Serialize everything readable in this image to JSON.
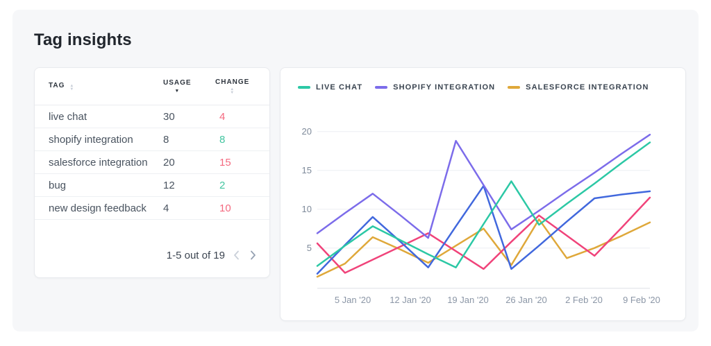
{
  "page": {
    "title": "Tag insights"
  },
  "table": {
    "columns": [
      {
        "label": "TAG",
        "sort": "sortable"
      },
      {
        "label": "USAGE",
        "sort": "desc"
      },
      {
        "label": "CHANGE",
        "sort": "sortable"
      }
    ],
    "rows": [
      {
        "tag": "live chat",
        "usage": "30",
        "change": "4",
        "direction": "down"
      },
      {
        "tag": "shopify integration",
        "usage": "8",
        "change": "8",
        "direction": "up"
      },
      {
        "tag": "salesforce integration",
        "usage": "20",
        "change": "15",
        "direction": "down"
      },
      {
        "tag": "bug",
        "usage": "12",
        "change": "2",
        "direction": "up"
      },
      {
        "tag": "new design feedback",
        "usage": "4",
        "change": "10",
        "direction": "down"
      }
    ],
    "pagination": {
      "label": "1-5 out of 19"
    }
  },
  "chart_data": {
    "type": "line",
    "x_labels": [
      "5 Jan '20",
      "12 Jan '20",
      "19 Jan '20",
      "26 Jan '20",
      "2 Feb '20",
      "9 Feb '20"
    ],
    "y_ticks": [
      5,
      10,
      15,
      20
    ],
    "ylim": [
      0,
      21
    ],
    "grid": true,
    "legend_position": "top-left",
    "legend": [
      {
        "label": "LIVE CHAT",
        "color": "#2cc8a5"
      },
      {
        "label": "SHOPIFY INTEGRATION",
        "color": "#7c6cea"
      },
      {
        "label": "SALESFORCE INTEGRATION",
        "color": "#dfa83a"
      }
    ],
    "series": [
      {
        "name": "salesforce integration",
        "color": "#dfa83a",
        "values": [
          1.3,
          3.0,
          6.4,
          4.8,
          3.1,
          5.3,
          7.5,
          2.8,
          8.7,
          3.7,
          5.0,
          6.6,
          8.3
        ]
      },
      {
        "name": "new design feedback",
        "color": "#f0437a",
        "values": [
          5.6,
          1.8,
          3.5,
          5.2,
          6.9,
          4.6,
          2.3,
          5.8,
          9.2,
          6.6,
          4.0,
          7.7,
          11.5
        ]
      },
      {
        "name": "bug",
        "color": "#4168dd",
        "values": [
          1.7,
          5.4,
          9.0,
          5.8,
          2.5,
          7.8,
          13.0,
          2.3,
          5.3,
          8.4,
          11.4,
          11.9,
          12.3
        ]
      },
      {
        "name": "shopify integration",
        "color": "#7c6cea",
        "values": [
          6.9,
          9.5,
          12.0,
          9.2,
          6.3,
          18.8,
          13.1,
          7.4,
          9.8,
          12.3,
          14.7,
          17.2,
          19.6
        ]
      },
      {
        "name": "live chat",
        "color": "#2cc8a5",
        "values": [
          2.7,
          5.3,
          7.8,
          6.0,
          4.2,
          2.5,
          8.1,
          13.6,
          8.0,
          10.7,
          13.3,
          16.0,
          18.6
        ]
      }
    ]
  }
}
